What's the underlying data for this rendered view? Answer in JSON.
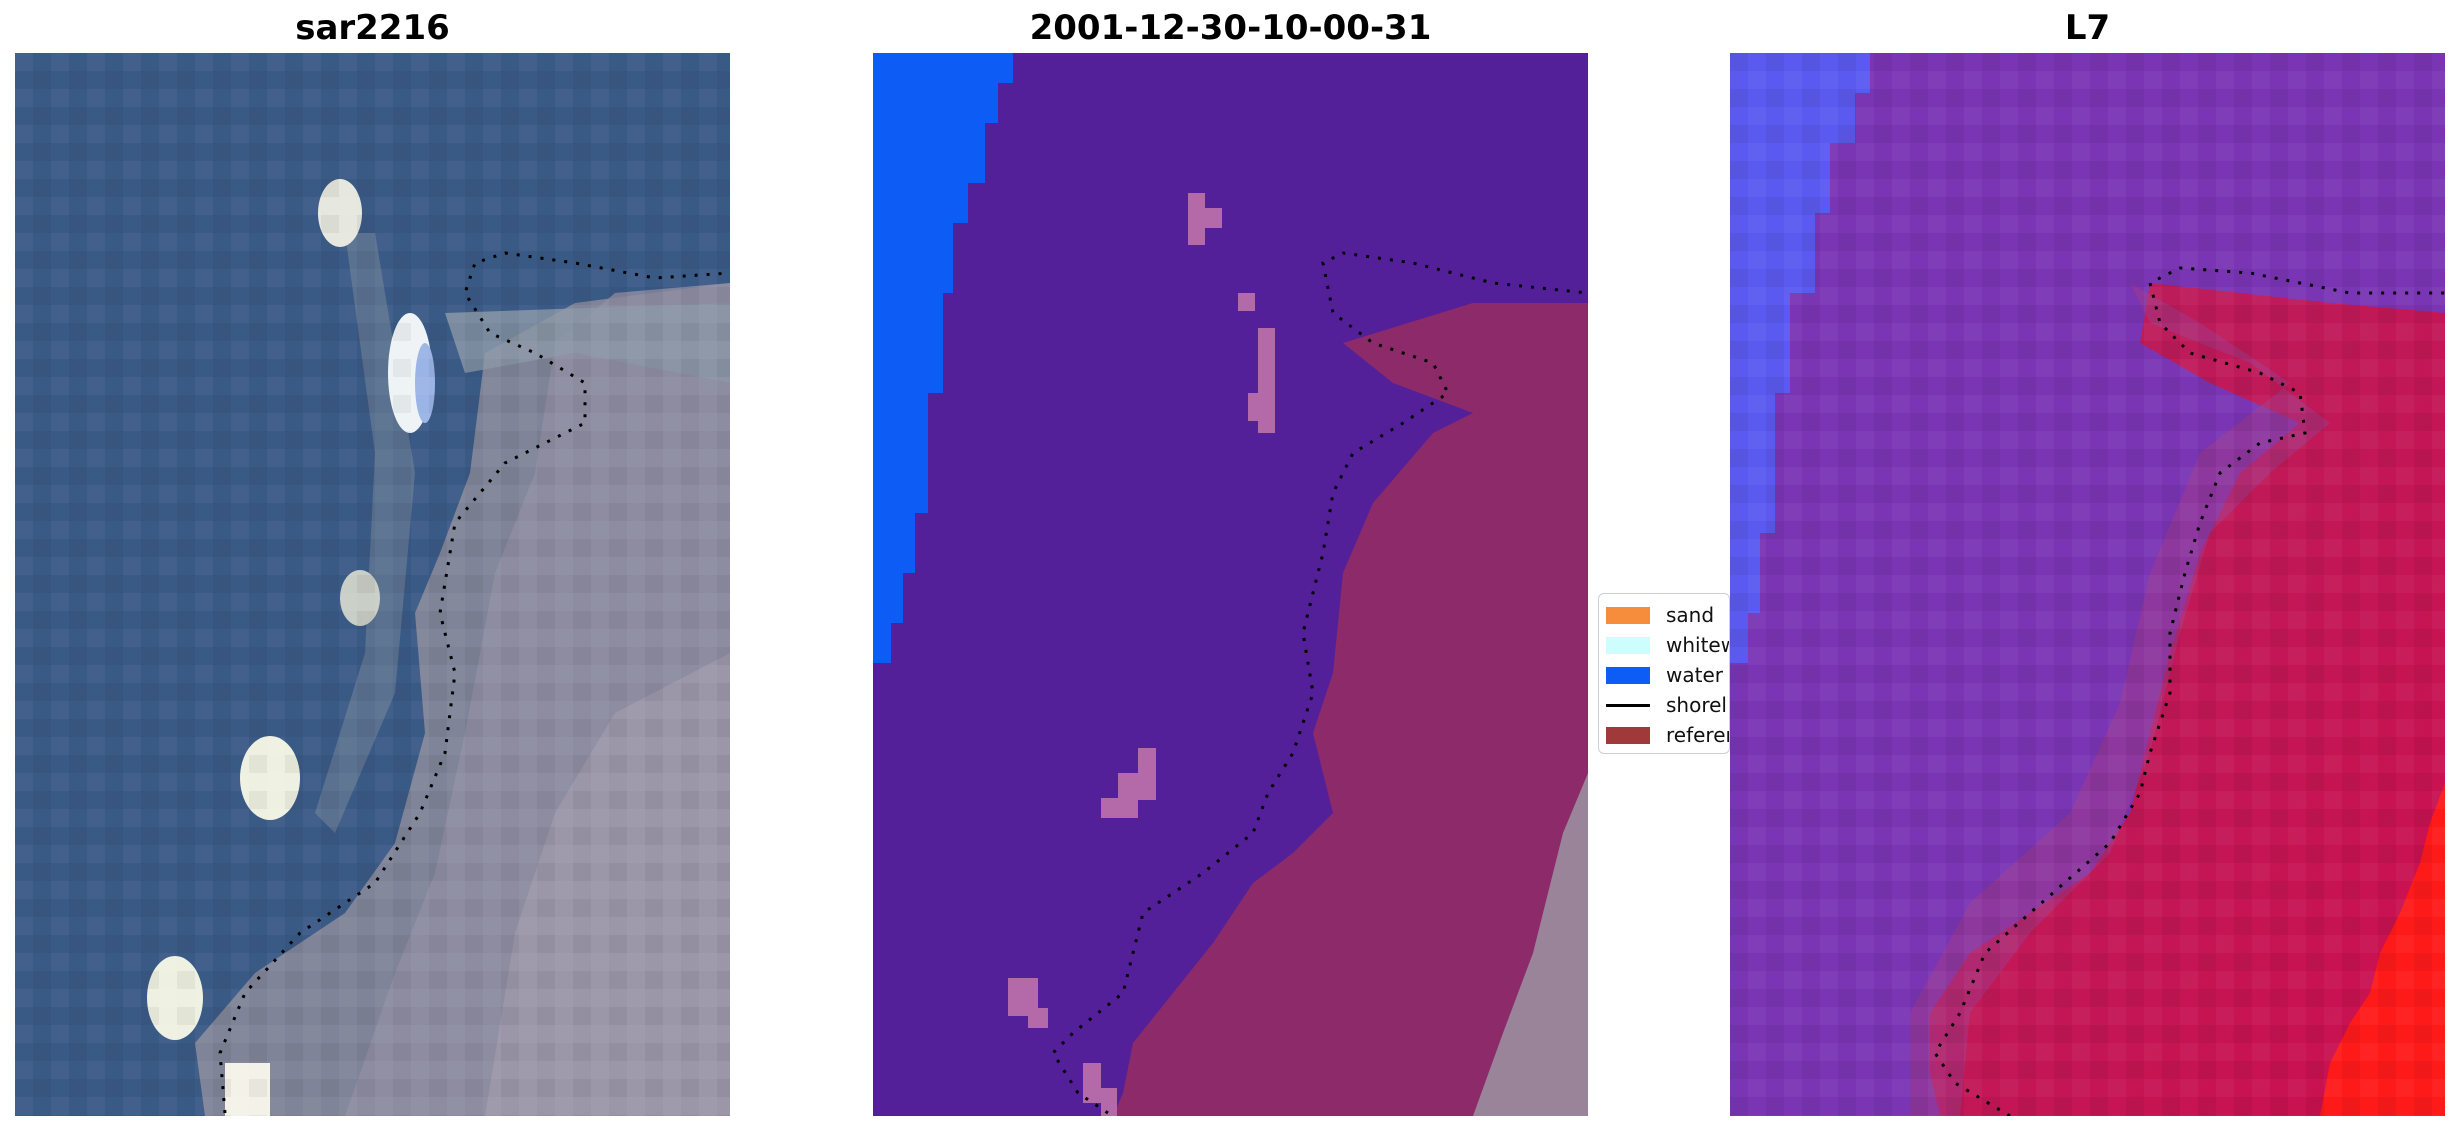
{
  "panels": [
    {
      "title": "sar2216"
    },
    {
      "title": "2001-12-30-10-00-31"
    },
    {
      "title": "L7"
    }
  ],
  "legend": {
    "items": [
      {
        "label": "sand",
        "color": "#f58d3c",
        "type": "patch"
      },
      {
        "label": "whitew",
        "color": "#cdfdfd",
        "type": "patch"
      },
      {
        "label": "water",
        "color": "#0d5cf5",
        "type": "patch"
      },
      {
        "label": "shorel",
        "color": "#000000",
        "type": "line"
      },
      {
        "label": "referen",
        "color": "#a03a3a",
        "type": "patch"
      }
    ]
  },
  "colors": {
    "sea_rgb": "#3a5a86",
    "land_rgb": "#8a8a9c",
    "class_water_deep": "#54209a",
    "class_water_blue": "#0d5cf5",
    "class_land": "#8c2a6a",
    "class_noise": "#b46aa8",
    "l7_water": "#7a35b5",
    "l7_land": "#c4155e",
    "l7_blue": "#5a5af0",
    "l7_bright_red": "#ff1a1a",
    "shoreline": "#000000"
  }
}
